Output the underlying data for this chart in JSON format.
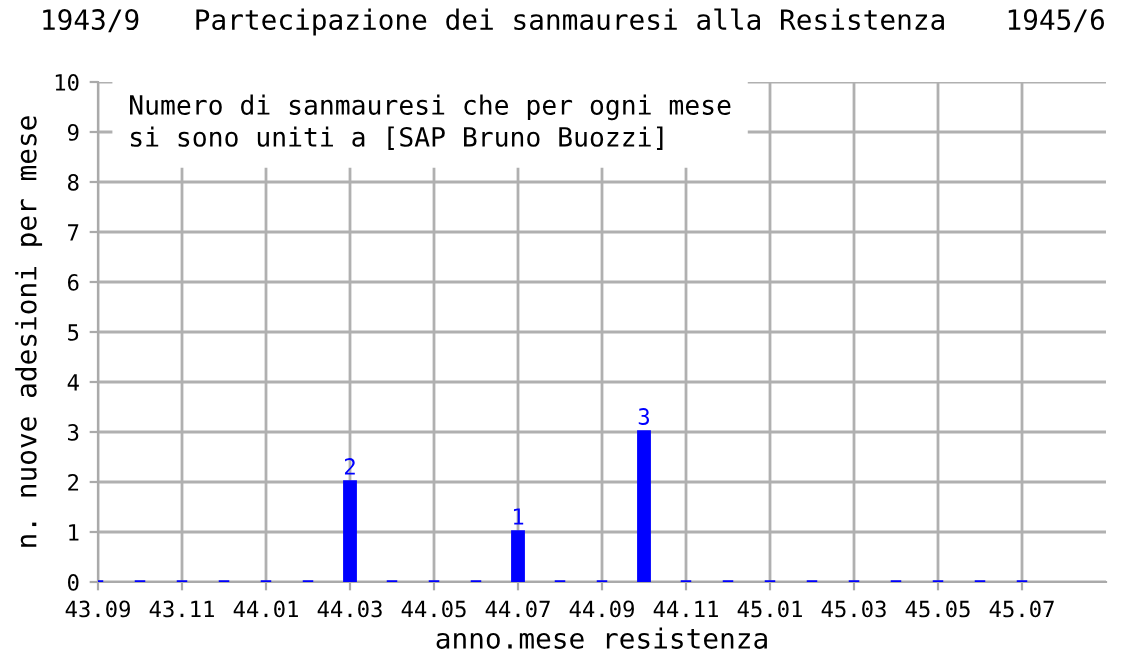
{
  "chart_data": {
    "type": "bar",
    "title": "Partecipazione dei sanmauresi alla Resistenza",
    "annotations": [
      "1943/9",
      "1945/6",
      "Numero di sanmauresi che per ogni mese\nsi sono uniti a [SAP Bruno Buozzi]"
    ],
    "xlabel": "anno.mese resistenza",
    "ylabel": "n. nuove adesioni per mese",
    "categories": [
      "43.09",
      null,
      "43.11",
      null,
      "44.01",
      null,
      "44.03",
      null,
      "44.05",
      null,
      "44.07",
      null,
      "44.09",
      null,
      "44.11",
      null,
      "45.01",
      null,
      "45.03",
      null,
      "45.05",
      null,
      "45.07"
    ],
    "values": [
      0,
      0,
      0,
      0,
      0,
      0,
      2,
      0,
      0,
      0,
      1,
      0,
      0,
      3,
      0,
      0,
      0,
      0,
      0,
      0,
      0,
      0,
      0
    ],
    "value_labels": [
      null,
      null,
      null,
      null,
      null,
      null,
      "2",
      null,
      null,
      null,
      "1",
      null,
      null,
      "3",
      null,
      null,
      null,
      null,
      null,
      null,
      null,
      null,
      null
    ],
    "color": "#0000ff",
    "ylim": [
      0,
      10
    ],
    "yticks": [
      0,
      1,
      2,
      3,
      4,
      5,
      6,
      7,
      8,
      9,
      10
    ],
    "grid": true
  }
}
